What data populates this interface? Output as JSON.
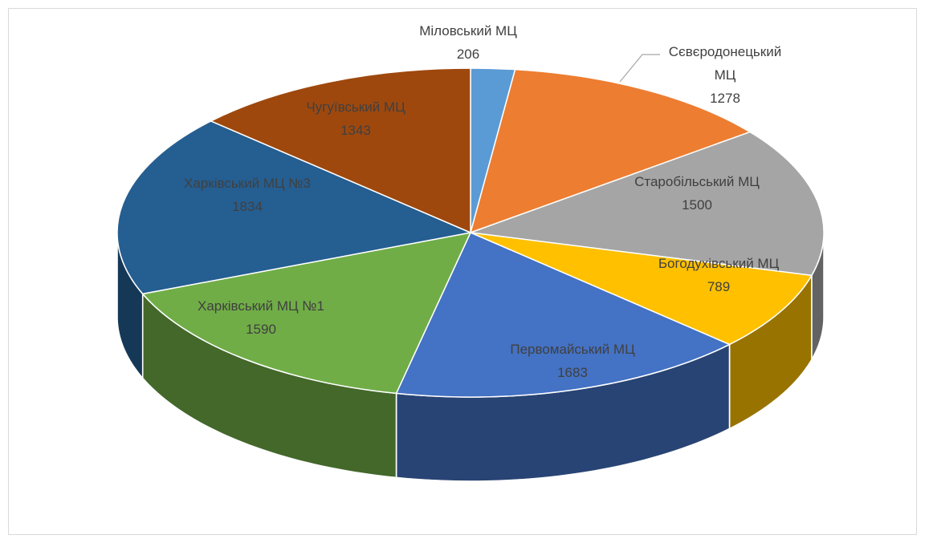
{
  "chart_data": {
    "type": "pie3d",
    "categories": [
      "Міловський МЦ",
      "Сєвєродонецький МЦ",
      "Старобільський МЦ",
      "Богодухівський МЦ",
      "Первомайський МЦ",
      "Харківський МЦ №1",
      "Харківський МЦ №3",
      "Чугуївський МЦ"
    ],
    "values": [
      206,
      1278,
      1500,
      789,
      1683,
      1590,
      1834,
      1343
    ],
    "colors": [
      "#5b9bd5",
      "#ed7d31",
      "#a5a5a5",
      "#ffc000",
      "#4472c4",
      "#70ad47",
      "#255e91",
      "#9e480e"
    ]
  }
}
